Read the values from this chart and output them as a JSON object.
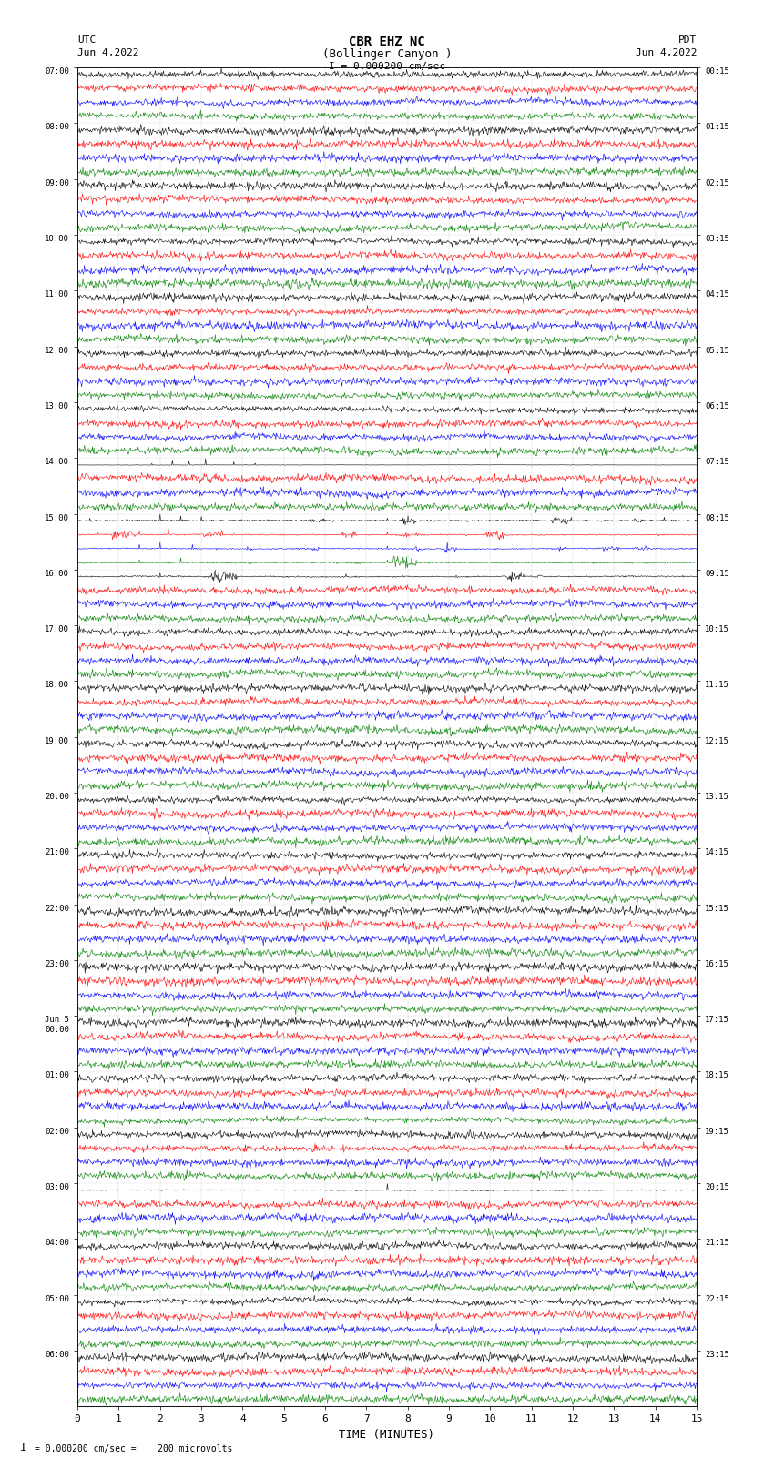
{
  "title_line1": "CBR EHZ NC",
  "title_line2": "(Bollinger Canyon )",
  "scale_label": "I = 0.000200 cm/sec",
  "utc_label": "UTC",
  "utc_date": "Jun 4,2022",
  "pdt_label": "PDT",
  "pdt_date": "Jun 4,2022",
  "xlabel": "TIME (MINUTES)",
  "bottom_note": "= 0.000200 cm/sec =    200 microvolts",
  "xlim": [
    0,
    15
  ],
  "xticks": [
    0,
    1,
    2,
    3,
    4,
    5,
    6,
    7,
    8,
    9,
    10,
    11,
    12,
    13,
    14,
    15
  ],
  "bg_color": "#ffffff",
  "trace_colors": [
    "black",
    "red",
    "blue",
    "green"
  ],
  "rows": [
    {
      "utc": "07:00",
      "pdt": "00:15"
    },
    {
      "utc": "08:00",
      "pdt": "01:15"
    },
    {
      "utc": "09:00",
      "pdt": "02:15"
    },
    {
      "utc": "10:00",
      "pdt": "03:15"
    },
    {
      "utc": "11:00",
      "pdt": "04:15"
    },
    {
      "utc": "12:00",
      "pdt": "05:15"
    },
    {
      "utc": "13:00",
      "pdt": "06:15"
    },
    {
      "utc": "14:00",
      "pdt": "07:15"
    },
    {
      "utc": "15:00",
      "pdt": "08:15"
    },
    {
      "utc": "16:00",
      "pdt": "09:15"
    },
    {
      "utc": "17:00",
      "pdt": "10:15"
    },
    {
      "utc": "18:00",
      "pdt": "11:15"
    },
    {
      "utc": "19:00",
      "pdt": "12:15"
    },
    {
      "utc": "20:00",
      "pdt": "13:15"
    },
    {
      "utc": "21:00",
      "pdt": "14:15"
    },
    {
      "utc": "22:00",
      "pdt": "15:15"
    },
    {
      "utc": "23:00",
      "pdt": "16:15"
    },
    {
      "utc": "Jun 5",
      "pdt": "17:15",
      "utc2": "00:00"
    },
    {
      "utc": "01:00",
      "pdt": "18:15"
    },
    {
      "utc": "02:00",
      "pdt": "19:15"
    },
    {
      "utc": "03:00",
      "pdt": "20:15"
    },
    {
      "utc": "04:00",
      "pdt": "21:15"
    },
    {
      "utc": "05:00",
      "pdt": "22:15"
    },
    {
      "utc": "06:00",
      "pdt": "23:15"
    }
  ],
  "n_rows": 24,
  "traces_per_row": 4,
  "n_points": 900,
  "seed": 42,
  "noise_base": 0.1
}
